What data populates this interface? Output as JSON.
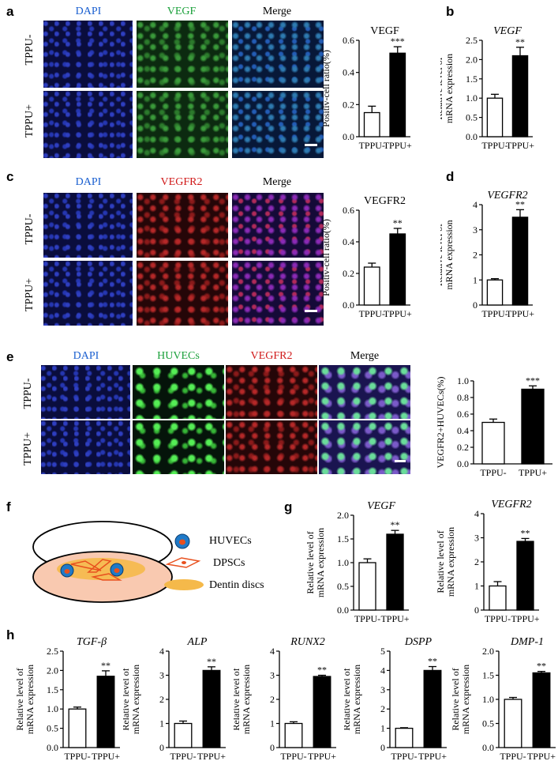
{
  "panels": {
    "a": {
      "letter": "a",
      "channels": [
        "DAPI",
        "VEGF",
        "Merge"
      ],
      "rows": [
        "TPPU-",
        "TPPU+"
      ]
    },
    "b": {
      "letter": "b"
    },
    "c": {
      "letter": "c",
      "channels": [
        "DAPI",
        "VEGFR2",
        "Merge"
      ],
      "rows": [
        "TPPU-",
        "TPPU+"
      ]
    },
    "d": {
      "letter": "d"
    },
    "e": {
      "letter": "e",
      "channels": [
        "DAPI",
        "HUVECs",
        "VEGFR2",
        "Merge"
      ],
      "rows": [
        "TPPU-",
        "TPPU+"
      ]
    },
    "f": {
      "letter": "f",
      "legend": [
        "HUVECs",
        "DPSCs",
        "Dentin discs"
      ]
    },
    "g": {
      "letter": "g"
    },
    "h": {
      "letter": "h"
    }
  },
  "colors": {
    "dapi": "#1a5fd0",
    "vegf": "#1aa03a",
    "vegfr2": "#d01818",
    "huvecs": "#1aa03a",
    "merge": "#000000",
    "dish_fill": "#f9c9b0",
    "disc": "#f5b94a",
    "cell_outline": "#e8501e",
    "cell_blue": "#1f7ac8"
  },
  "chart_data": [
    {
      "id": "a-chart",
      "type": "bar",
      "title": "VEGF",
      "ylabel": "Positiv-cell ratio(%)",
      "categories": [
        "TPPU-",
        "TPPU+"
      ],
      "values": [
        0.15,
        0.52
      ],
      "errors": [
        0.04,
        0.04
      ],
      "ylim": [
        0,
        0.6
      ],
      "yticks": [
        0.0,
        0.2,
        0.4,
        0.6
      ],
      "ytick_labels": [
        "0.0",
        "0.2",
        "0.4",
        "0.6"
      ],
      "significance": "***",
      "italic_title": false
    },
    {
      "id": "b-chart",
      "type": "bar",
      "title": "VEGF",
      "ylabel": [
        "Relative level of",
        "mRNA expression"
      ],
      "categories": [
        "TPPU-",
        "TPPU+"
      ],
      "values": [
        1.0,
        2.1
      ],
      "errors": [
        0.1,
        0.22
      ],
      "ylim": [
        0,
        2.5
      ],
      "yticks": [
        0,
        0.5,
        1.0,
        1.5,
        2.0,
        2.5
      ],
      "ytick_labels": [
        "0.0",
        "0.5",
        "1.0",
        "1.5",
        "2.0",
        "2.5"
      ],
      "significance": "**",
      "italic_title": true
    },
    {
      "id": "c-chart",
      "type": "bar",
      "title": "VEGFR2",
      "ylabel": "Positiv-cell ratio(%)",
      "categories": [
        "TPPU-",
        "TPPU+"
      ],
      "values": [
        0.24,
        0.45
      ],
      "errors": [
        0.025,
        0.035
      ],
      "ylim": [
        0,
        0.6
      ],
      "yticks": [
        0.0,
        0.2,
        0.4,
        0.6
      ],
      "ytick_labels": [
        "0.0",
        "0.2",
        "0.4",
        "0.6"
      ],
      "significance": "**",
      "italic_title": false
    },
    {
      "id": "d-chart",
      "type": "bar",
      "title": "VEGFR2",
      "ylabel": [
        "Relative level of",
        "mRNA expression"
      ],
      "categories": [
        "TPPU-",
        "TPPU+"
      ],
      "values": [
        1.0,
        3.5
      ],
      "errors": [
        0.05,
        0.3
      ],
      "ylim": [
        0,
        4
      ],
      "yticks": [
        0,
        1,
        2,
        3,
        4
      ],
      "ytick_labels": [
        "0",
        "1",
        "2",
        "3",
        "4"
      ],
      "significance": "**",
      "italic_title": true
    },
    {
      "id": "e-chart",
      "type": "bar",
      "title": "",
      "ylabel": "VEGFR2+HUVECs(%)",
      "categories": [
        "TPPU-",
        "TPPU+"
      ],
      "values": [
        0.5,
        0.9
      ],
      "errors": [
        0.04,
        0.04
      ],
      "ylim": [
        0,
        1.0
      ],
      "yticks": [
        0.0,
        0.2,
        0.4,
        0.6,
        0.8,
        1.0
      ],
      "ytick_labels": [
        "0.0",
        "0.2",
        "0.4",
        "0.6",
        "0.8",
        "1.0"
      ],
      "significance": "***",
      "italic_title": false
    },
    {
      "id": "g1-chart",
      "type": "bar",
      "title": "VEGF",
      "ylabel": [
        "Relative level of",
        "mRNA expression"
      ],
      "categories": [
        "TPPU-",
        "TPPU+"
      ],
      "values": [
        1.0,
        1.6
      ],
      "errors": [
        0.08,
        0.08
      ],
      "ylim": [
        0,
        2.0
      ],
      "yticks": [
        0,
        0.5,
        1.0,
        1.5,
        2.0
      ],
      "ytick_labels": [
        "0.0",
        "0.5",
        "1.0",
        "1.5",
        "2.0"
      ],
      "significance": "**",
      "italic_title": true
    },
    {
      "id": "g2-chart",
      "type": "bar",
      "title": "VEGFR2",
      "ylabel": [
        "Relative level of",
        "mRNA expression"
      ],
      "categories": [
        "TPPU-",
        "TPPU+"
      ],
      "values": [
        1.0,
        2.85
      ],
      "errors": [
        0.18,
        0.12
      ],
      "ylim": [
        0,
        4
      ],
      "yticks": [
        0,
        1,
        2,
        3,
        4
      ],
      "ytick_labels": [
        "0",
        "1",
        "2",
        "3",
        "4"
      ],
      "significance": "**",
      "italic_title": true
    },
    {
      "id": "h1-chart",
      "type": "bar",
      "title": "TGF-β",
      "ylabel": [
        "Relative level of",
        "mRNA expression"
      ],
      "categories": [
        "TPPU-",
        "TPPU+"
      ],
      "values": [
        1.0,
        1.85
      ],
      "errors": [
        0.05,
        0.14
      ],
      "ylim": [
        0,
        2.5
      ],
      "yticks": [
        0,
        0.5,
        1.0,
        1.5,
        2.0,
        2.5
      ],
      "ytick_labels": [
        "0.0",
        "0.5",
        "1.0",
        "1.5",
        "2.0",
        "2.5"
      ],
      "significance": "**",
      "italic_title": true
    },
    {
      "id": "h2-chart",
      "type": "bar",
      "title": "ALP",
      "ylabel": [
        "Relative level of",
        "mRNA expression"
      ],
      "categories": [
        "TPPU-",
        "TPPU+"
      ],
      "values": [
        1.0,
        3.2
      ],
      "errors": [
        0.1,
        0.15
      ],
      "ylim": [
        0,
        4
      ],
      "yticks": [
        0,
        1,
        2,
        3,
        4
      ],
      "ytick_labels": [
        "0",
        "1",
        "2",
        "3",
        "4"
      ],
      "significance": "**",
      "italic_title": true
    },
    {
      "id": "h3-chart",
      "type": "bar",
      "title": "RUNX2",
      "ylabel": [
        "Relative level of",
        "mRNA expression"
      ],
      "categories": [
        "TPPU-",
        "TPPU+"
      ],
      "values": [
        1.0,
        2.95
      ],
      "errors": [
        0.07,
        0.05
      ],
      "ylim": [
        0,
        4
      ],
      "yticks": [
        0,
        1,
        2,
        3,
        4
      ],
      "ytick_labels": [
        "0",
        "1",
        "2",
        "3",
        "4"
      ],
      "significance": "**",
      "italic_title": true
    },
    {
      "id": "h4-chart",
      "type": "bar",
      "title": "DSPP",
      "ylabel": [
        "Relative level of",
        "mRNA expression"
      ],
      "categories": [
        "TPPU-",
        "TPPU+"
      ],
      "values": [
        1.0,
        4.0
      ],
      "errors": [
        0.03,
        0.2
      ],
      "ylim": [
        0,
        5
      ],
      "yticks": [
        0,
        1,
        2,
        3,
        4,
        5
      ],
      "ytick_labels": [
        "0",
        "1",
        "2",
        "3",
        "4",
        "5"
      ],
      "significance": "**",
      "italic_title": true
    },
    {
      "id": "h5-chart",
      "type": "bar",
      "title": "DMP-1",
      "ylabel": [
        "Relative level of",
        "mRNA expression"
      ],
      "categories": [
        "TPPU-",
        "TPPU+"
      ],
      "values": [
        1.0,
        1.55
      ],
      "errors": [
        0.04,
        0.03
      ],
      "ylim": [
        0,
        2.0
      ],
      "yticks": [
        0,
        0.5,
        1.0,
        1.5,
        2.0
      ],
      "ytick_labels": [
        "0.0",
        "0.5",
        "1.0",
        "1.5",
        "2.0"
      ],
      "significance": "**",
      "italic_title": true
    }
  ]
}
